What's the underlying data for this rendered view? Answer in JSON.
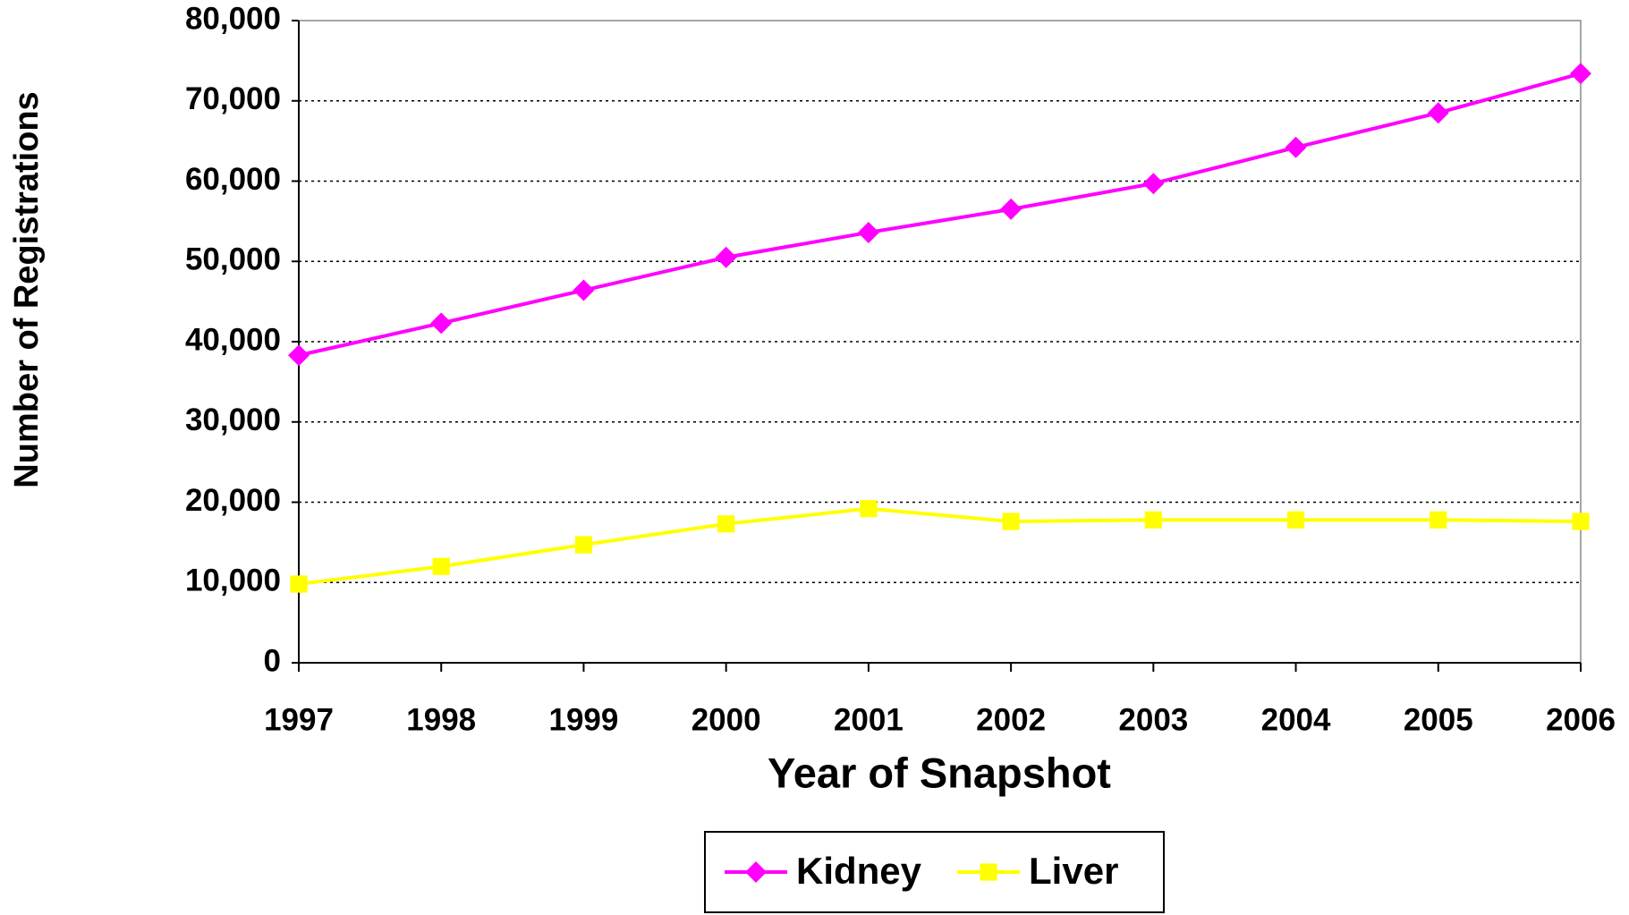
{
  "chart_data": {
    "type": "line",
    "x_label": "Year of Snapshot",
    "y_label": "Number of Registrations",
    "categories": [
      "1997",
      "1998",
      "1999",
      "2000",
      "2001",
      "2002",
      "2003",
      "2004",
      "2005",
      "2006"
    ],
    "series": [
      {
        "name": "Kidney",
        "color": "#ff00ff",
        "marker": "diamond",
        "values": [
          38300,
          42300,
          46400,
          50500,
          53600,
          56500,
          59700,
          64200,
          68500,
          73400
        ]
      },
      {
        "name": "Liver",
        "color": "#ffff00",
        "marker": "square",
        "values": [
          9800,
          12000,
          14700,
          17300,
          19200,
          17600,
          17800,
          17800,
          17800,
          17600
        ]
      }
    ],
    "ylim": [
      0,
      80000
    ],
    "yticks": [
      0,
      {
        "value": 10000,
        "label": "10,000"
      },
      {
        "value": 20000,
        "label": "20,000"
      },
      {
        "value": 30000,
        "label": "30,000"
      },
      {
        "value": 40000,
        "label": "40,000"
      },
      {
        "value": 50000,
        "label": "50,000"
      },
      {
        "value": 60000,
        "label": "60,000"
      },
      {
        "value": 70000,
        "label": "70,000"
      },
      {
        "value": 80000,
        "label": "80,000"
      }
    ],
    "grid": true,
    "legend": "bottom"
  }
}
